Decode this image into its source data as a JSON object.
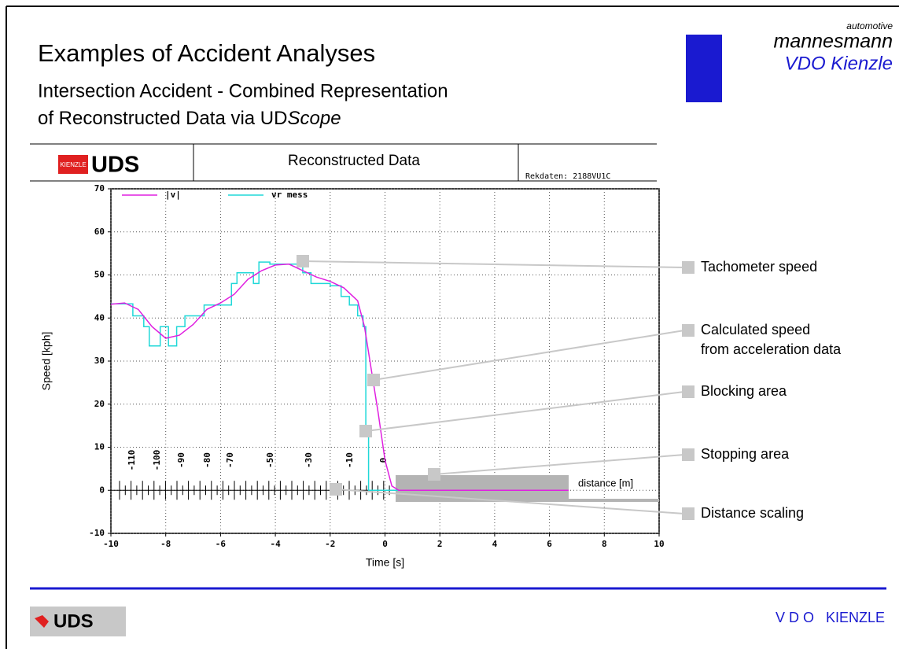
{
  "header": {
    "title": "Examples of Accident Analyses",
    "subtitle_line1": "Intersection Accident - Combined Representation",
    "subtitle_line2": "of Reconstructed Data via UD",
    "subtitle_italic": "Scope"
  },
  "logo": {
    "top": "automotive",
    "name": "mannesmann",
    "brand": "VDO Kienzle"
  },
  "chart_header": {
    "badge": "KIENZLE",
    "product": "UDS",
    "title": "Reconstructed Data",
    "file": "Rekdaten: 2188VU1C"
  },
  "footer": {
    "left": "UDS",
    "right": "V D O   KIENZLE"
  },
  "chart_data": {
    "type": "line",
    "x_label": "Time [s]",
    "y_label": "Speed [kph]",
    "xlim": [
      -10,
      10
    ],
    "ylim": [
      -10,
      70
    ],
    "xticks": [
      -10,
      -8,
      -6,
      -4,
      -2,
      0,
      2,
      4,
      6,
      8,
      10
    ],
    "yticks": [
      -10,
      0,
      10,
      20,
      30,
      40,
      50,
      60,
      70
    ],
    "grid": true,
    "series": [
      {
        "name": "|v|",
        "color": "#e020e0",
        "x": [
          -10,
          -9.5,
          -9,
          -8.5,
          -8,
          -7.5,
          -7,
          -6.5,
          -6,
          -5.5,
          -5,
          -4.5,
          -4,
          -3.5,
          -3,
          -2.5,
          -2,
          -1.5,
          -1,
          -0.75,
          -0.5,
          -0.25,
          0,
          0.25,
          0.5,
          1,
          6.7
        ],
        "values": [
          43.2,
          43.5,
          42,
          38,
          35.3,
          36,
          38.5,
          42,
          43.5,
          45.5,
          49,
          51,
          52.3,
          52.5,
          51,
          49.5,
          48.5,
          47,
          44,
          38,
          28,
          18,
          7,
          1,
          0,
          0,
          0
        ]
      },
      {
        "name": "vr mess",
        "color": "#20d8d8",
        "x": [
          -10,
          -9.2,
          -9.2,
          -8.8,
          -8.8,
          -8.6,
          -8.6,
          -8.2,
          -8.2,
          -7.9,
          -7.9,
          -7.6,
          -7.6,
          -7.3,
          -7.3,
          -6.6,
          -6.6,
          -5.6,
          -5.6,
          -5.4,
          -5.4,
          -4.8,
          -4.8,
          -4.6,
          -4.6,
          -4.2,
          -4.2,
          -3.0,
          -3.0,
          -2.7,
          -2.7,
          -2.0,
          -2.0,
          -1.6,
          -1.6,
          -1.3,
          -1.3,
          -1.0,
          -1.0,
          -0.8,
          -0.8,
          -0.7,
          -0.7,
          -0.6,
          -0.6,
          0.5
        ],
        "values": [
          43.3,
          43.3,
          40.5,
          40.5,
          38,
          38,
          33.5,
          33.5,
          38,
          38,
          33.5,
          33.5,
          38,
          38,
          40.5,
          40.5,
          43,
          43,
          48,
          48,
          50.5,
          50.5,
          48,
          48,
          53,
          53,
          52.5,
          52.5,
          50.5,
          50.5,
          48,
          48,
          47.5,
          47.5,
          45,
          45,
          43,
          43,
          40.5,
          40.5,
          38,
          38,
          13,
          13,
          0,
          0
        ]
      }
    ],
    "distance_ticks": [
      -110,
      -100,
      -90,
      -80,
      -70,
      -50,
      -30,
      -10,
      0
    ],
    "distance_label": "distance [m]",
    "annotations": [
      [
        "Tachometer speed"
      ],
      [
        "Calculated speed",
        "from acceleration data"
      ],
      [
        "Blocking area"
      ],
      [
        "Stopping area"
      ],
      [
        "Distance scaling"
      ]
    ]
  }
}
